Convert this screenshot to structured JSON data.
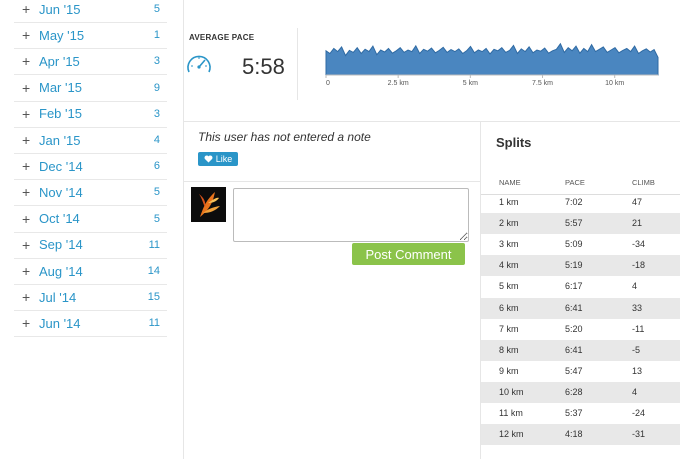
{
  "months": [
    {
      "label": "Jun '15",
      "count": "5"
    },
    {
      "label": "May '15",
      "count": "1"
    },
    {
      "label": "Apr '15",
      "count": "3"
    },
    {
      "label": "Mar '15",
      "count": "9"
    },
    {
      "label": "Feb '15",
      "count": "3"
    },
    {
      "label": "Jan '15",
      "count": "4"
    },
    {
      "label": "Dec '14",
      "count": "6"
    },
    {
      "label": "Nov '14",
      "count": "5"
    },
    {
      "label": "Oct '14",
      "count": "5"
    },
    {
      "label": "Sep '14",
      "count": "11"
    },
    {
      "label": "Aug '14",
      "count": "14"
    },
    {
      "label": "Jul '14",
      "count": "15"
    },
    {
      "label": "Jun '14",
      "count": "11"
    }
  ],
  "plus_symbol": "+",
  "pace": {
    "title": "AVERAGE PACE",
    "value": "5:58",
    "icon": "speedometer-icon",
    "chart_color": "#4a86c0",
    "x_ticks": [
      "0",
      "2.5 km",
      "5 km",
      "7.5 km",
      "10 km"
    ],
    "x_tick_values": [
      0,
      2.5,
      5,
      7.5,
      10
    ],
    "x_max": 11.5,
    "profile": [
      0.62,
      0.55,
      0.68,
      0.6,
      0.72,
      0.5,
      0.63,
      0.58,
      0.7,
      0.55,
      0.66,
      0.6,
      0.74,
      0.52,
      0.64,
      0.59,
      0.68,
      0.56,
      0.62,
      0.7,
      0.58,
      0.64,
      0.6,
      0.75,
      0.55,
      0.66,
      0.61,
      0.69,
      0.57,
      0.63,
      0.71,
      0.58,
      0.65,
      0.6,
      0.67,
      0.55,
      0.62,
      0.73,
      0.57,
      0.64,
      0.6,
      0.68,
      0.54,
      0.66,
      0.62,
      0.7,
      0.58,
      0.63,
      0.76,
      0.55,
      0.67,
      0.6,
      0.72,
      0.57,
      0.64,
      0.61,
      0.69,
      0.56,
      0.62,
      0.66,
      0.8,
      0.58,
      0.7,
      0.62,
      0.74,
      0.56,
      0.68,
      0.6,
      0.78,
      0.6,
      0.66,
      0.72,
      0.58,
      0.64,
      0.7,
      0.57,
      0.63,
      0.68,
      0.6,
      0.74,
      0.55,
      0.62,
      0.67,
      0.59,
      0.65,
      0.45
    ]
  },
  "note": {
    "text": "This user has not entered a note",
    "like_label": "Like"
  },
  "comment": {
    "placeholder": "",
    "post_label": "Post Comment"
  },
  "splits": {
    "title": "Splits",
    "headers": {
      "name": "NAME",
      "pace": "PACE",
      "climb": "CLIMB"
    },
    "rows": [
      {
        "name": "1 km",
        "pace": "7:02",
        "climb": "47"
      },
      {
        "name": "2 km",
        "pace": "5:57",
        "climb": "21"
      },
      {
        "name": "3 km",
        "pace": "5:09",
        "climb": "-34"
      },
      {
        "name": "4 km",
        "pace": "5:19",
        "climb": "-18"
      },
      {
        "name": "5 km",
        "pace": "6:17",
        "climb": "4"
      },
      {
        "name": "6 km",
        "pace": "6:41",
        "climb": "33"
      },
      {
        "name": "7 km",
        "pace": "5:20",
        "climb": "-11"
      },
      {
        "name": "8 km",
        "pace": "6:41",
        "climb": "-5"
      },
      {
        "name": "9 km",
        "pace": "5:47",
        "climb": "13"
      },
      {
        "name": "10 km",
        "pace": "6:28",
        "climb": "4"
      },
      {
        "name": "11 km",
        "pace": "5:37",
        "climb": "-24"
      },
      {
        "name": "12 km",
        "pace": "4:18",
        "climb": "-31"
      }
    ]
  }
}
